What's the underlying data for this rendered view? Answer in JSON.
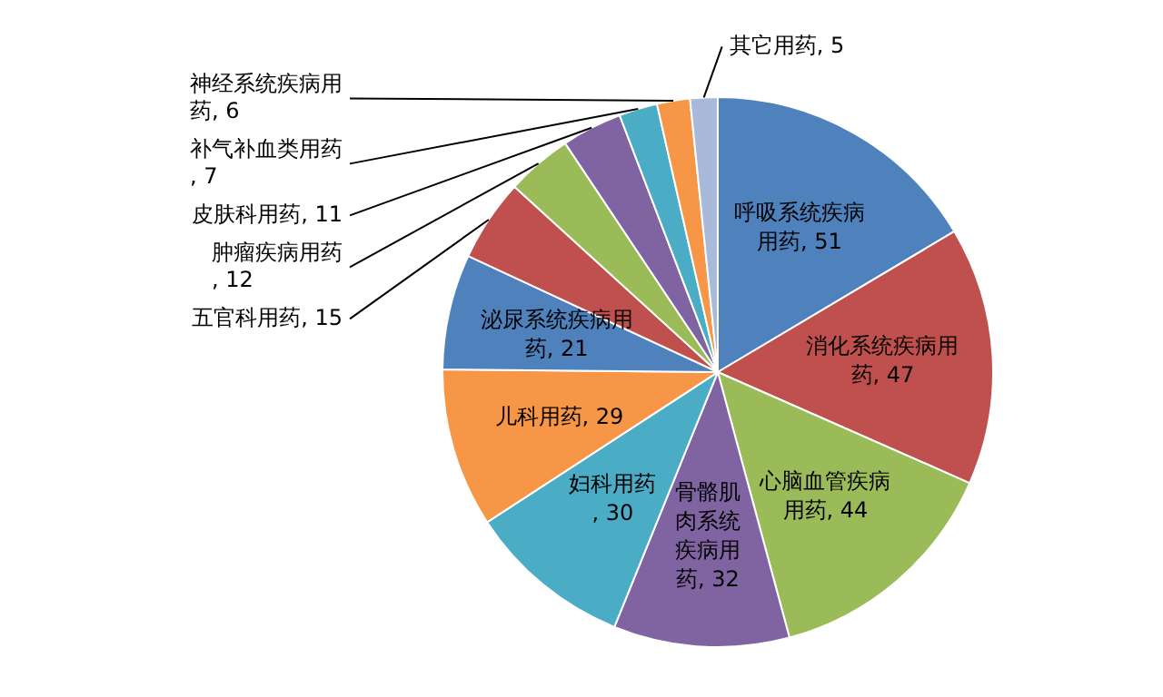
{
  "chart_data": {
    "type": "pie",
    "categories": [
      "呼吸系统疾病用药",
      "消化系统疾病用药",
      "心脑血管疾病用药",
      "骨骼肌肉系统疾病用药",
      "妇科用药",
      "儿科用药",
      "泌尿系统疾病用药",
      "五官科用药",
      "肿瘤疾病用药",
      "皮肤科用药",
      "补气补血类用药",
      "神经系统疾病用药",
      "其它用药"
    ],
    "values": [
      51,
      47,
      44,
      32,
      30,
      29,
      21,
      15,
      12,
      11,
      7,
      6,
      5
    ],
    "colors": [
      "#4f81bd",
      "#c0504d",
      "#9bbb59",
      "#8064a2",
      "#4bacc6",
      "#f79646",
      "#4f81bd",
      "#c0504d",
      "#9bbb59",
      "#8064a2",
      "#4bacc6",
      "#f79646",
      "#a9b9da"
    ],
    "value_labels": [
      ", 51",
      ", 47",
      ", 44",
      ", 32",
      ", 30",
      ", 29",
      ", 21",
      ", 15",
      ", 12",
      ", 11",
      ", 7",
      ", 6",
      ", 5"
    ],
    "legend": false
  }
}
